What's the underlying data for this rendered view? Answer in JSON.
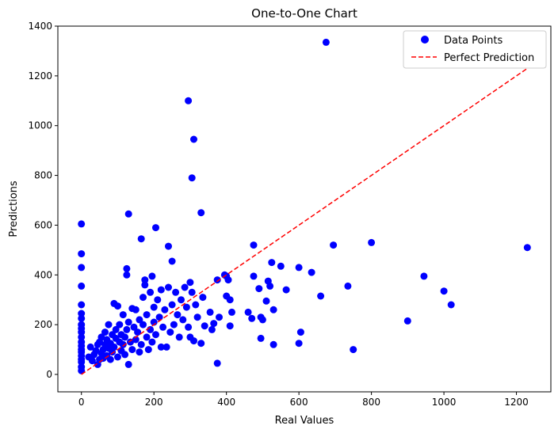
{
  "colors": {
    "points": "#0000ff",
    "line": "#ff0000",
    "axes": "#000000",
    "background": "#ffffff",
    "legend_border": "#cccccc"
  },
  "chart_data": {
    "type": "scatter",
    "title": "One-to-One Chart",
    "xlabel": "Real Values",
    "ylabel": "Predictions",
    "xlim": [
      -65,
      1295
    ],
    "ylim": [
      -70,
      1400
    ],
    "xticks": [
      0,
      200,
      400,
      600,
      800,
      1000,
      1200
    ],
    "yticks": [
      0,
      200,
      400,
      600,
      800,
      1000,
      1200,
      1400
    ],
    "grid": false,
    "legend_position": "top-right",
    "series": [
      {
        "name": "Data Points",
        "kind": "scatter",
        "points": [
          [
            0,
            15
          ],
          [
            0,
            30
          ],
          [
            0,
            50
          ],
          [
            0,
            60
          ],
          [
            0,
            75
          ],
          [
            0,
            90
          ],
          [
            0,
            100
          ],
          [
            0,
            115
          ],
          [
            0,
            130
          ],
          [
            0,
            150
          ],
          [
            0,
            170
          ],
          [
            0,
            185
          ],
          [
            0,
            200
          ],
          [
            0,
            225
          ],
          [
            0,
            245
          ],
          [
            0,
            280
          ],
          [
            0,
            355
          ],
          [
            0,
            430
          ],
          [
            0,
            485
          ],
          [
            0,
            605
          ],
          [
            20,
            70
          ],
          [
            25,
            110
          ],
          [
            30,
            55
          ],
          [
            35,
            80
          ],
          [
            40,
            95
          ],
          [
            45,
            120
          ],
          [
            45,
            40
          ],
          [
            50,
            60
          ],
          [
            50,
            130
          ],
          [
            55,
            85
          ],
          [
            55,
            150
          ],
          [
            60,
            100
          ],
          [
            60,
            65
          ],
          [
            65,
            120
          ],
          [
            65,
            170
          ],
          [
            70,
            75
          ],
          [
            70,
            140
          ],
          [
            75,
            200
          ],
          [
            75,
            105
          ],
          [
            80,
            60
          ],
          [
            80,
            125
          ],
          [
            85,
            160
          ],
          [
            85,
            90
          ],
          [
            90,
            285
          ],
          [
            90,
            110
          ],
          [
            95,
            145
          ],
          [
            95,
            180
          ],
          [
            100,
            70
          ],
          [
            100,
            275
          ],
          [
            105,
            130
          ],
          [
            105,
            200
          ],
          [
            110,
            95
          ],
          [
            110,
            160
          ],
          [
            115,
            240
          ],
          [
            115,
            120
          ],
          [
            120,
            150
          ],
          [
            120,
            80
          ],
          [
            125,
            425
          ],
          [
            125,
            400
          ],
          [
            125,
            180
          ],
          [
            130,
            645
          ],
          [
            130,
            210
          ],
          [
            130,
            40
          ],
          [
            135,
            130
          ],
          [
            140,
            265
          ],
          [
            140,
            100
          ],
          [
            145,
            190
          ],
          [
            150,
            260
          ],
          [
            150,
            140
          ],
          [
            155,
            170
          ],
          [
            160,
            90
          ],
          [
            160,
            220
          ],
          [
            165,
            545
          ],
          [
            165,
            120
          ],
          [
            170,
            200
          ],
          [
            170,
            310
          ],
          [
            175,
            380
          ],
          [
            175,
            360
          ],
          [
            180,
            150
          ],
          [
            180,
            240
          ],
          [
            185,
            100
          ],
          [
            190,
            330
          ],
          [
            190,
            180
          ],
          [
            195,
            395
          ],
          [
            195,
            130
          ],
          [
            200,
            270
          ],
          [
            200,
            210
          ],
          [
            205,
            590
          ],
          [
            205,
            160
          ],
          [
            210,
            300
          ],
          [
            215,
            230
          ],
          [
            220,
            110
          ],
          [
            220,
            340
          ],
          [
            225,
            190
          ],
          [
            230,
            260
          ],
          [
            235,
            110
          ],
          [
            240,
            515
          ],
          [
            240,
            350
          ],
          [
            245,
            170
          ],
          [
            250,
            455
          ],
          [
            250,
            280
          ],
          [
            255,
            200
          ],
          [
            260,
            330
          ],
          [
            265,
            240
          ],
          [
            270,
            150
          ],
          [
            275,
            300
          ],
          [
            280,
            220
          ],
          [
            285,
            350
          ],
          [
            290,
            270
          ],
          [
            295,
            1100
          ],
          [
            295,
            190
          ],
          [
            300,
            370
          ],
          [
            300,
            150
          ],
          [
            305,
            790
          ],
          [
            305,
            330
          ],
          [
            310,
            945
          ],
          [
            310,
            135
          ],
          [
            315,
            280
          ],
          [
            320,
            230
          ],
          [
            330,
            650
          ],
          [
            330,
            125
          ],
          [
            335,
            310
          ],
          [
            340,
            195
          ],
          [
            355,
            250
          ],
          [
            360,
            180
          ],
          [
            365,
            205
          ],
          [
            375,
            45
          ],
          [
            375,
            380
          ],
          [
            380,
            230
          ],
          [
            395,
            400
          ],
          [
            400,
            395
          ],
          [
            400,
            315
          ],
          [
            405,
            380
          ],
          [
            410,
            300
          ],
          [
            410,
            195
          ],
          [
            415,
            250
          ],
          [
            460,
            250
          ],
          [
            470,
            225
          ],
          [
            475,
            520
          ],
          [
            475,
            395
          ],
          [
            490,
            345
          ],
          [
            495,
            230
          ],
          [
            495,
            145
          ],
          [
            500,
            220
          ],
          [
            510,
            295
          ],
          [
            515,
            375
          ],
          [
            520,
            355
          ],
          [
            525,
            450
          ],
          [
            530,
            120
          ],
          [
            530,
            260
          ],
          [
            550,
            435
          ],
          [
            565,
            340
          ],
          [
            600,
            430
          ],
          [
            600,
            125
          ],
          [
            605,
            170
          ],
          [
            635,
            410
          ],
          [
            660,
            315
          ],
          [
            675,
            1335
          ],
          [
            695,
            520
          ],
          [
            735,
            355
          ],
          [
            750,
            100
          ],
          [
            800,
            530
          ],
          [
            900,
            215
          ],
          [
            945,
            395
          ],
          [
            1000,
            335
          ],
          [
            1020,
            280
          ],
          [
            1230,
            510
          ]
        ]
      },
      {
        "name": "Perfect Prediction",
        "kind": "line",
        "style": "dashed",
        "points": [
          [
            0,
            0
          ],
          [
            1230,
            1230
          ]
        ]
      }
    ]
  }
}
